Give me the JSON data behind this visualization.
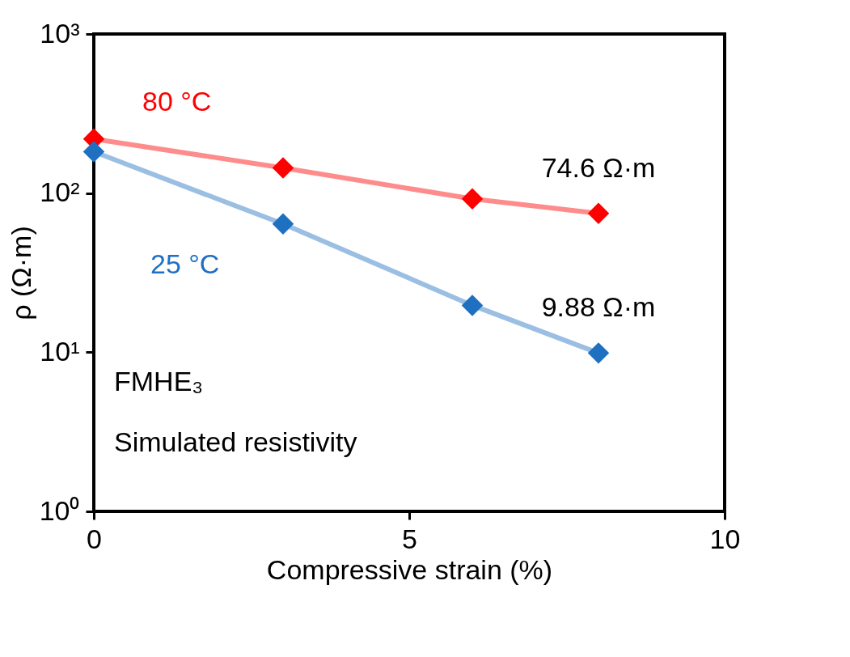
{
  "chart_data": {
    "type": "line",
    "xlabel": "Compressive strain (%)",
    "ylabel": "ρ (Ω·m)",
    "x": [
      0,
      3,
      6,
      8
    ],
    "series": [
      {
        "name": "80 °C",
        "color": "#ff0000",
        "values": [
          219,
          144,
          92,
          74.6
        ]
      },
      {
        "name": "25 °C",
        "color": "#1f70c1",
        "values": [
          182,
          64,
          19.7,
          9.88
        ]
      }
    ],
    "log": "y",
    "xlim": [
      0,
      10
    ],
    "xticks": [
      0,
      5,
      10
    ],
    "ylim": [
      1,
      1000
    ],
    "yticks": [
      {
        "value": 1,
        "label": "10⁰"
      },
      {
        "value": 10,
        "label": "10¹"
      },
      {
        "value": 100,
        "label": "10²"
      },
      {
        "value": 1000,
        "label": "10³"
      }
    ],
    "annotations": [
      {
        "text": "74.6 Ω·m",
        "x": 8,
        "y": 74.6
      },
      {
        "text": "9.88 Ω·m",
        "x": 8,
        "y": 9.88
      },
      "FMHE₃",
      "Simulated resistivity"
    ],
    "grid": false,
    "legend": false,
    "marker": "diamond",
    "line_style": "solid"
  }
}
